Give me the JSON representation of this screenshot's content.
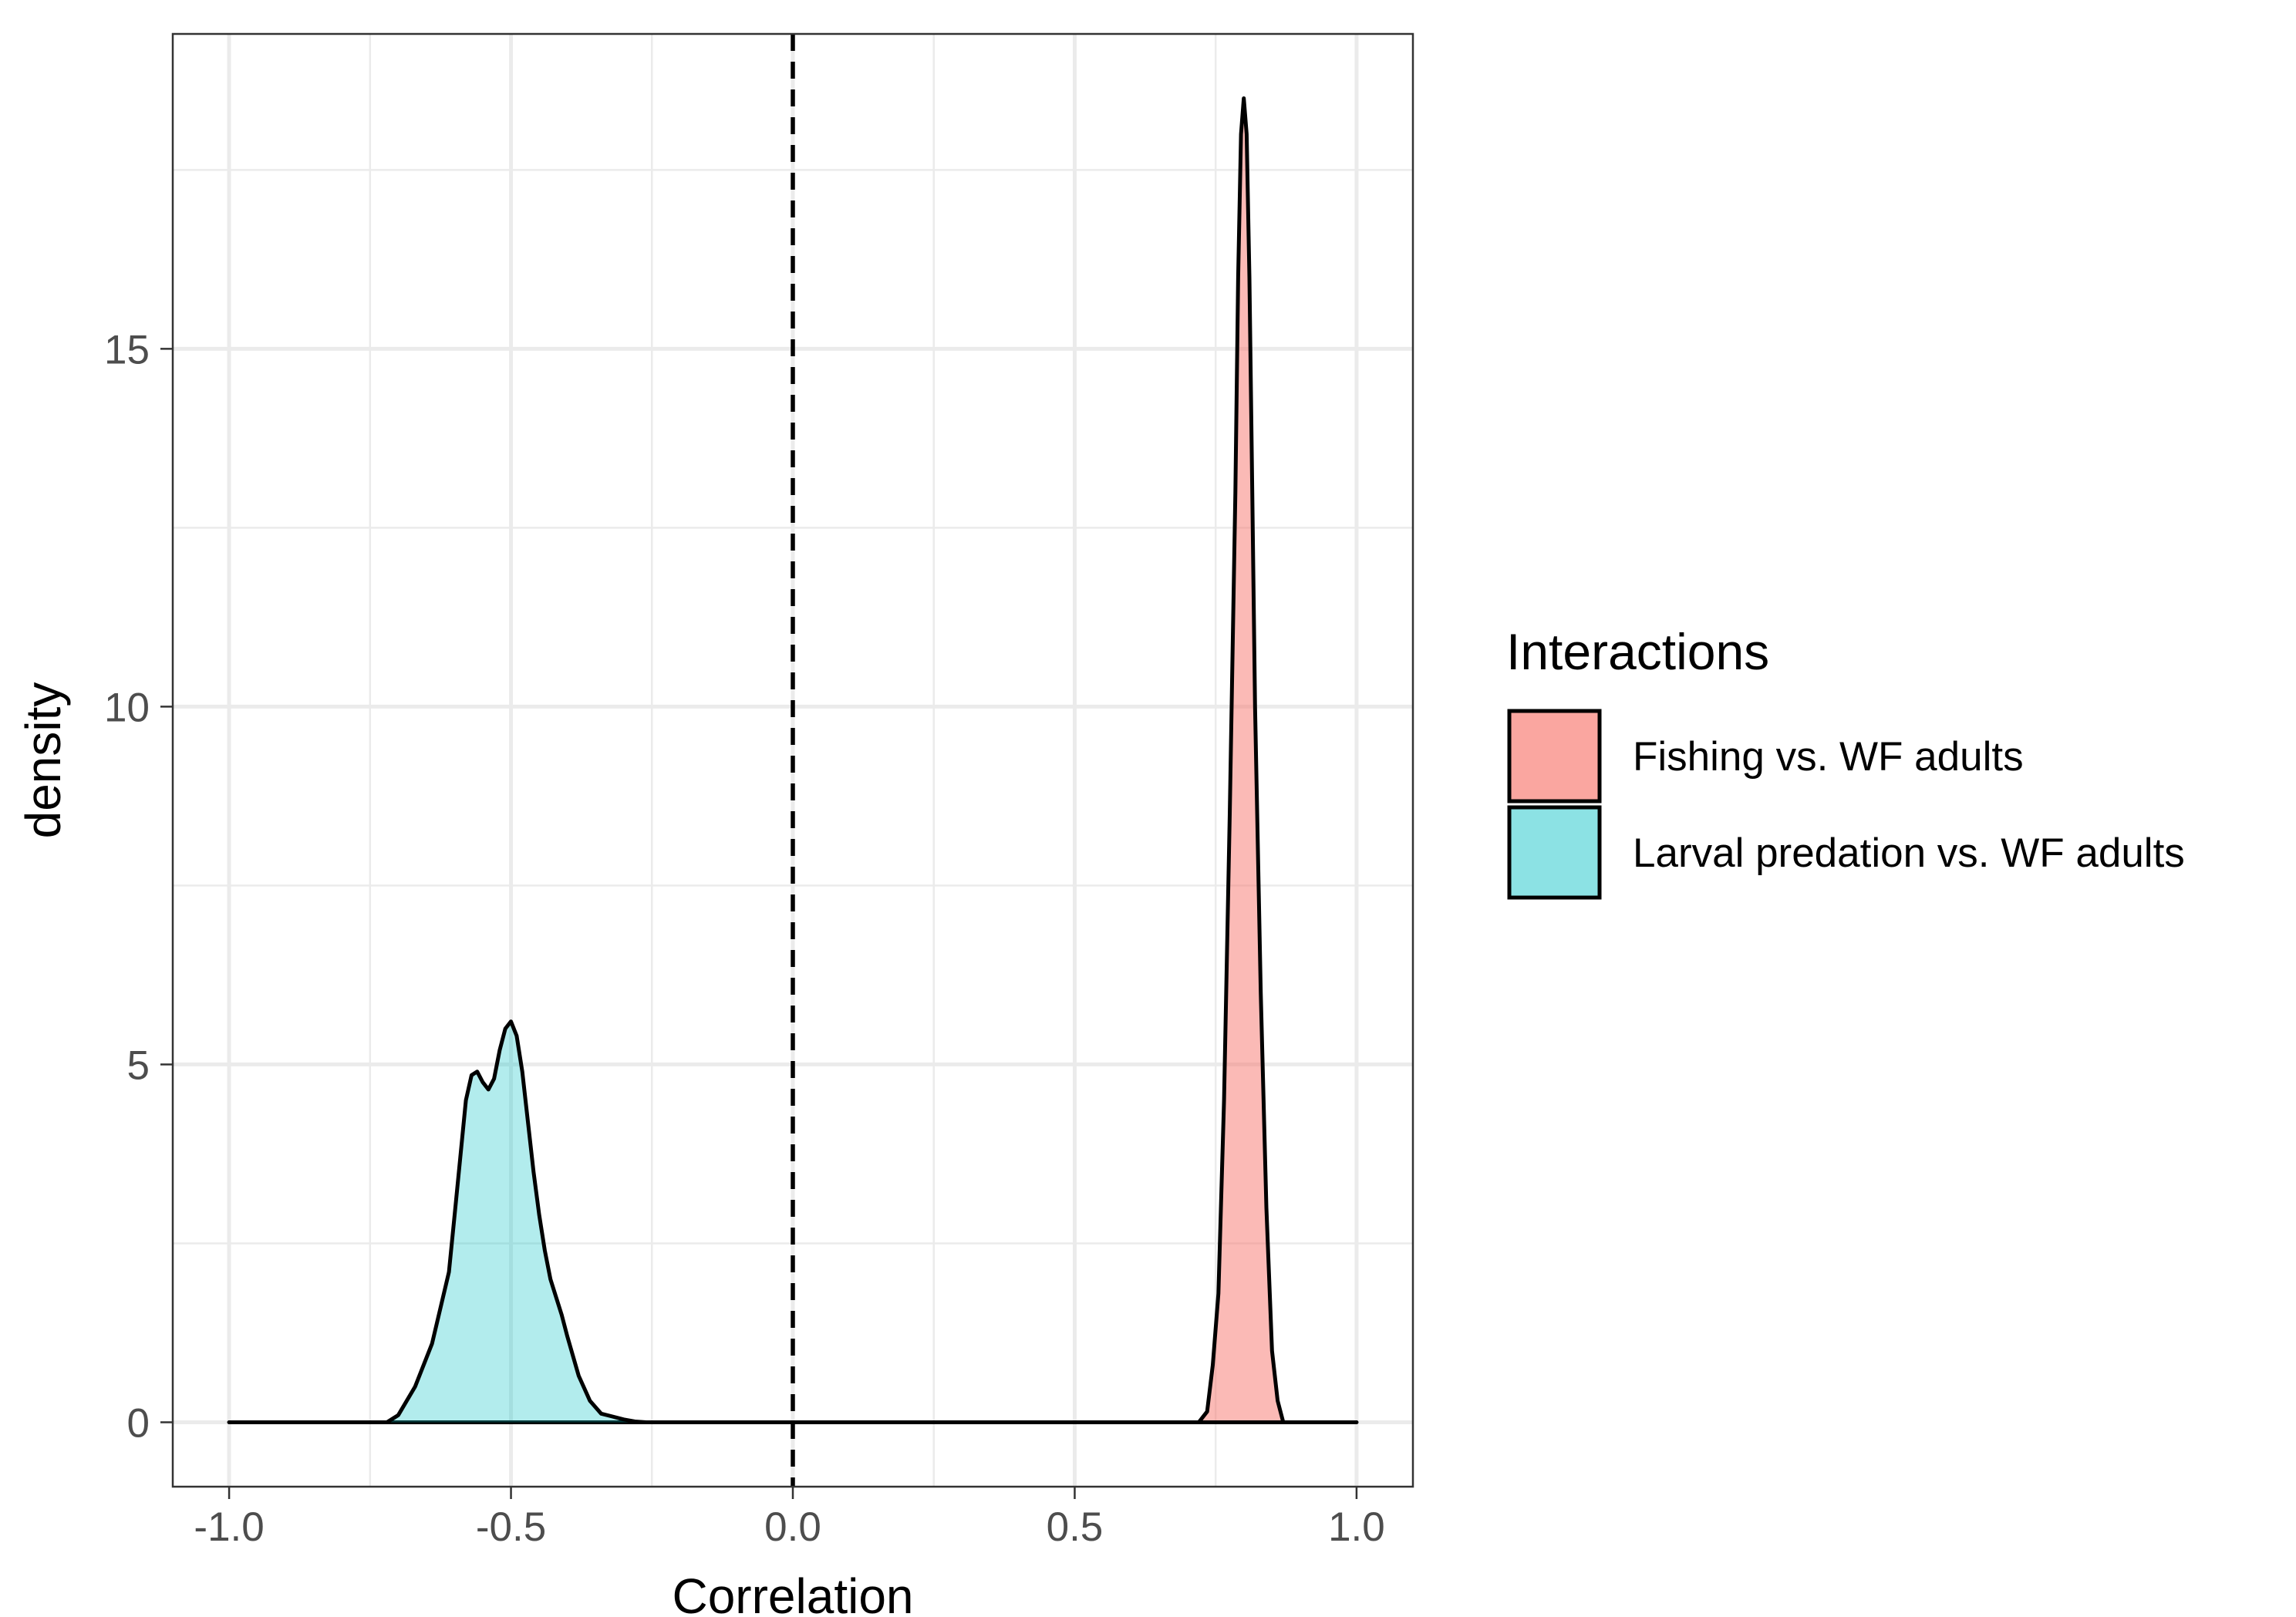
{
  "chart_data": {
    "type": "area",
    "xlabel": "Correlation",
    "ylabel": "density",
    "xlim": [
      -1.1,
      1.1
    ],
    "ylim": [
      -0.9,
      19.4
    ],
    "x_ticks": [
      -1.0,
      -0.5,
      0.0,
      0.5,
      1.0
    ],
    "x_tick_labels": [
      "-1.0",
      "-0.5",
      "0.0",
      "0.5",
      "1.0"
    ],
    "y_ticks": [
      0,
      5,
      10,
      15
    ],
    "y_tick_labels": [
      "0",
      "5",
      "10",
      "15"
    ],
    "x_minor_gridlines": [
      -0.75,
      -0.25,
      0.25,
      0.75
    ],
    "y_minor_gridlines": [
      2.5,
      7.5,
      12.5,
      17.5
    ],
    "grid": true,
    "reference_line": {
      "x": 0,
      "style": "dashed"
    },
    "legend": {
      "title": "Interactions",
      "position": "right",
      "entries": [
        "Fishing vs. WF adults",
        "Larval predation vs. WF adults"
      ]
    },
    "series": [
      {
        "name": "Fishing vs. WF adults",
        "color": "#F8766D",
        "fill_alpha": 0.5,
        "x": [
          -1.0,
          0.72,
          0.735,
          0.745,
          0.755,
          0.765,
          0.775,
          0.785,
          0.79,
          0.795,
          0.8,
          0.805,
          0.81,
          0.815,
          0.82,
          0.83,
          0.84,
          0.85,
          0.86,
          0.87,
          1.0
        ],
        "y": [
          0,
          0,
          0.15,
          0.8,
          1.8,
          4.5,
          8.5,
          13.0,
          16.0,
          18.0,
          18.5,
          18.0,
          16.0,
          13.0,
          10.0,
          6.0,
          3.0,
          1.0,
          0.3,
          0,
          0
        ]
      },
      {
        "name": "Larval predation vs. WF adults",
        "color": "#00BFC4",
        "fill_alpha": 0.3,
        "x": [
          -1.0,
          -0.72,
          -0.7,
          -0.67,
          -0.64,
          -0.61,
          -0.6,
          -0.59,
          -0.58,
          -0.57,
          -0.56,
          -0.55,
          -0.54,
          -0.53,
          -0.52,
          -0.51,
          -0.5,
          -0.49,
          -0.48,
          -0.47,
          -0.46,
          -0.45,
          -0.44,
          -0.43,
          -0.42,
          -0.41,
          -0.4,
          -0.38,
          -0.36,
          -0.34,
          -0.32,
          -0.3,
          -0.28,
          -0.26,
          1.0
        ],
        "y": [
          0,
          0,
          0.1,
          0.5,
          1.1,
          2.1,
          2.9,
          3.7,
          4.5,
          4.85,
          4.9,
          4.75,
          4.65,
          4.8,
          5.2,
          5.5,
          5.6,
          5.4,
          4.9,
          4.2,
          3.5,
          2.9,
          2.4,
          2.0,
          1.75,
          1.5,
          1.2,
          0.65,
          0.3,
          0.12,
          0.08,
          0.04,
          0.01,
          0,
          0
        ]
      }
    ]
  }
}
